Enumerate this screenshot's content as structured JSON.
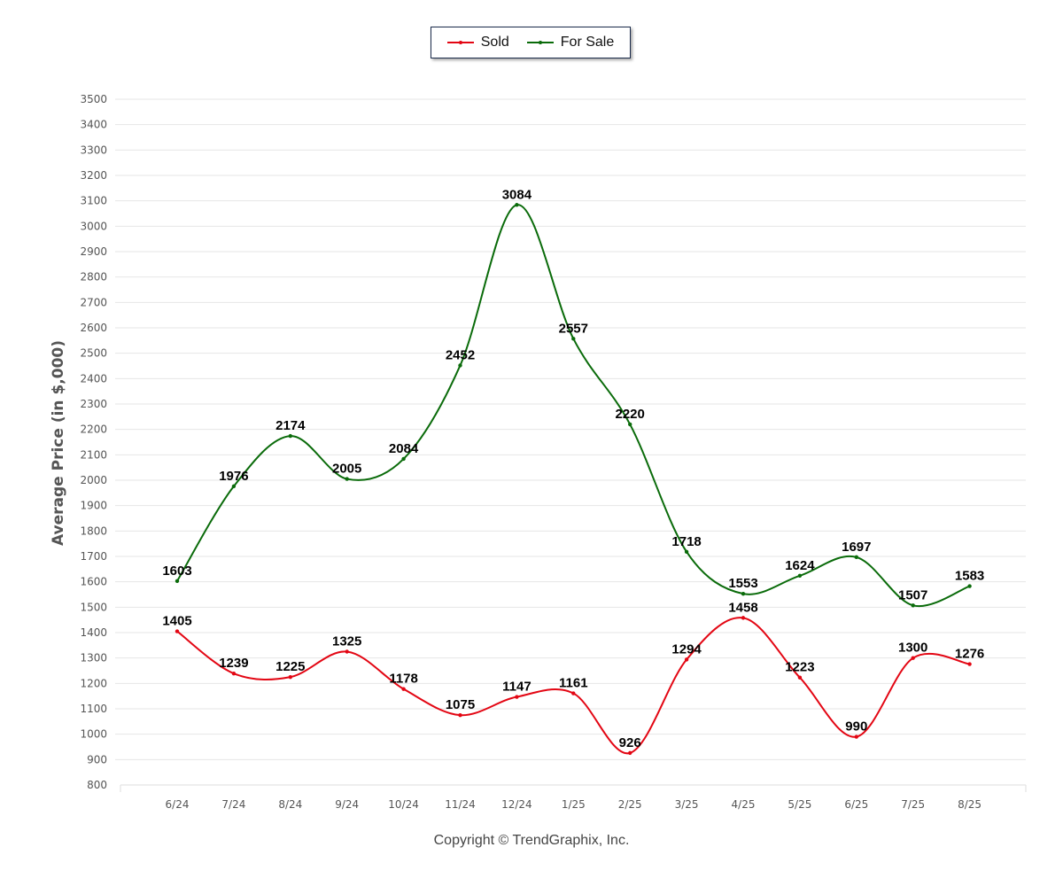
{
  "legend": {
    "sold_label": "Sold",
    "for_sale_label": "For Sale"
  },
  "footer": {
    "copyright": "Copyright © TrendGraphix, Inc."
  },
  "chart_data": {
    "type": "line",
    "title": "",
    "xlabel": "",
    "ylabel": "Average Price (in $,000)",
    "ylim": [
      800,
      3500
    ],
    "ytick_step": 100,
    "grid": true,
    "legend_position": "top-center",
    "categories": [
      "6/24",
      "7/24",
      "8/24",
      "9/24",
      "10/24",
      "11/24",
      "12/24",
      "1/25",
      "2/25",
      "3/25",
      "4/25",
      "5/25",
      "6/25",
      "7/25",
      "8/25"
    ],
    "series": [
      {
        "name": "Sold",
        "color": "#e30613",
        "values": [
          1405,
          1239,
          1225,
          1325,
          1178,
          1075,
          1147,
          1161,
          926,
          1294,
          1458,
          1223,
          990,
          1300,
          1276
        ]
      },
      {
        "name": "For Sale",
        "color": "#0a6b0a",
        "values": [
          1603,
          1976,
          2174,
          2005,
          2084,
          2452,
          3084,
          2557,
          2220,
          1718,
          1553,
          1624,
          1697,
          1507,
          1583
        ]
      }
    ]
  }
}
